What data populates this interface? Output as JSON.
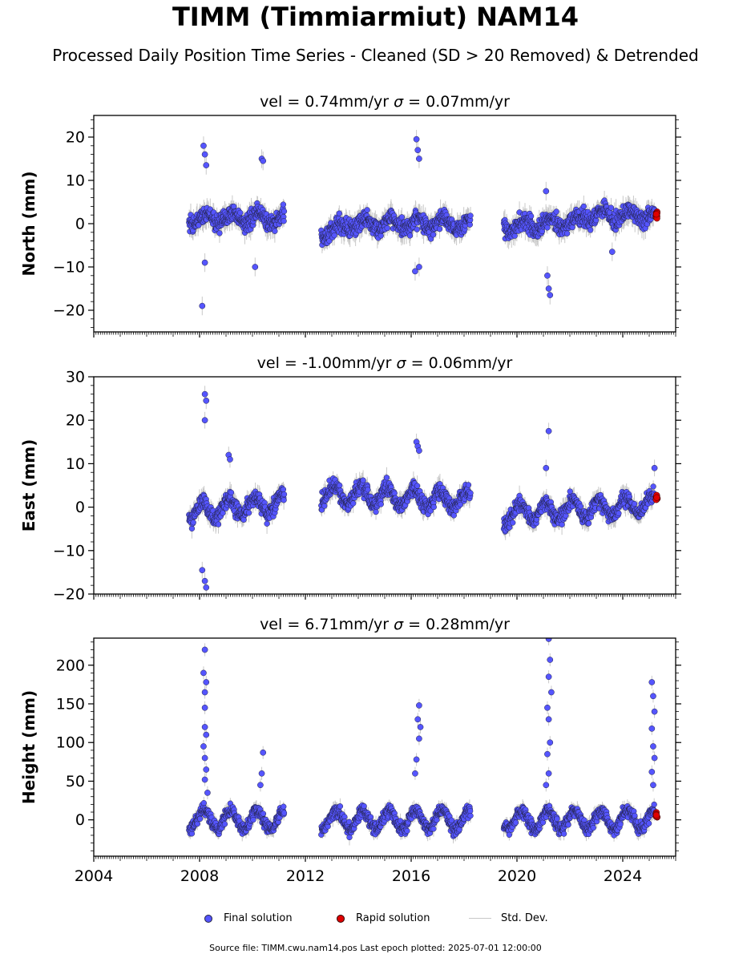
{
  "title": "TIMM (Timmiarmiut) NAM14",
  "subtitle": "Processed Daily Position Time Series - Cleaned (SD > 20 Removed) & Detrended",
  "source_note": "Source file: TIMM.cwu.nam14.pos  Last epoch plotted: 2025-07-01 12:00:00",
  "legend": {
    "final": "Final solution",
    "rapid": "Rapid solution",
    "std": "Std. Dev."
  },
  "colors": {
    "final": "#5555ff",
    "final_edge": "#222244",
    "rapid": "#e00000",
    "std": "#c8c8c8"
  },
  "chart_data": [
    {
      "type": "scatter",
      "panel_title": "vel = 0.74mm/yr   σ = 0.07mm/yr",
      "vel_label": "vel = 0.74mm/yr",
      "sigma_label": "= 0.07mm/yr",
      "ylabel": "North (mm)",
      "ylim": [
        -25,
        25
      ],
      "yticks": [
        -20,
        -10,
        0,
        10,
        20
      ],
      "xlim": [
        2004,
        2026
      ],
      "outliers": [
        [
          2008.15,
          18
        ],
        [
          2008.2,
          16
        ],
        [
          2008.25,
          13.5
        ],
        [
          2008.1,
          -19
        ],
        [
          2008.2,
          -9
        ],
        [
          2010.35,
          15
        ],
        [
          2010.4,
          14.5
        ],
        [
          2010.1,
          -10
        ],
        [
          2016.2,
          19.5
        ],
        [
          2016.25,
          17
        ],
        [
          2016.3,
          15
        ],
        [
          2016.15,
          -11
        ],
        [
          2016.3,
          -10
        ],
        [
          2021.1,
          7.5
        ],
        [
          2021.2,
          -15
        ],
        [
          2021.25,
          -16.5
        ],
        [
          2021.15,
          -12
        ],
        [
          2023.6,
          -6.5
        ]
      ]
    },
    {
      "type": "scatter",
      "panel_title": "vel = -1.00mm/yr   σ = 0.06mm/yr",
      "vel_label": "vel = -1.00mm/yr",
      "sigma_label": "= 0.06mm/yr",
      "ylabel": "East (mm)",
      "ylim": [
        -20,
        30
      ],
      "yticks": [
        -20,
        -10,
        0,
        10,
        20,
        30
      ],
      "xlim": [
        2004,
        2026
      ],
      "outliers": [
        [
          2008.2,
          26
        ],
        [
          2008.25,
          24.5
        ],
        [
          2008.2,
          20
        ],
        [
          2008.1,
          -14.5
        ],
        [
          2008.2,
          -17
        ],
        [
          2008.25,
          -18.5
        ],
        [
          2009.1,
          12
        ],
        [
          2009.15,
          11
        ],
        [
          2016.2,
          15
        ],
        [
          2016.25,
          14
        ],
        [
          2016.3,
          13
        ],
        [
          2021.2,
          17.5
        ],
        [
          2021.1,
          9
        ],
        [
          2025.2,
          9
        ]
      ]
    },
    {
      "type": "scatter",
      "panel_title": "vel = 6.71mm/yr   σ = 0.28mm/yr",
      "vel_label": "vel = 6.71mm/yr",
      "sigma_label": "= 0.28mm/yr",
      "ylabel": "Height (mm)",
      "ylim": [
        -47,
        235
      ],
      "yticks": [
        0,
        50,
        100,
        150,
        200
      ],
      "xlim": [
        2004,
        2026
      ],
      "xticks": [
        2004,
        2008,
        2012,
        2016,
        2020,
        2024
      ],
      "outliers": [
        [
          2008.2,
          220
        ],
        [
          2008.15,
          190
        ],
        [
          2008.25,
          178
        ],
        [
          2008.2,
          165
        ],
        [
          2008.2,
          145
        ],
        [
          2008.2,
          120
        ],
        [
          2008.25,
          110
        ],
        [
          2008.15,
          95
        ],
        [
          2008.2,
          80
        ],
        [
          2008.25,
          65
        ],
        [
          2008.2,
          52
        ],
        [
          2008.3,
          35
        ],
        [
          2010.4,
          87
        ],
        [
          2010.35,
          60
        ],
        [
          2010.3,
          45
        ],
        [
          2016.3,
          148
        ],
        [
          2016.25,
          130
        ],
        [
          2016.35,
          120
        ],
        [
          2016.3,
          105
        ],
        [
          2016.2,
          78
        ],
        [
          2016.15,
          60
        ],
        [
          2021.2,
          234
        ],
        [
          2021.25,
          207
        ],
        [
          2021.2,
          185
        ],
        [
          2021.3,
          165
        ],
        [
          2021.15,
          145
        ],
        [
          2021.2,
          130
        ],
        [
          2021.25,
          100
        ],
        [
          2021.15,
          85
        ],
        [
          2021.2,
          60
        ],
        [
          2021.1,
          45
        ],
        [
          2025.1,
          178
        ],
        [
          2025.15,
          160
        ],
        [
          2025.2,
          140
        ],
        [
          2025.1,
          118
        ],
        [
          2025.15,
          95
        ],
        [
          2025.2,
          80
        ],
        [
          2025.1,
          62
        ],
        [
          2025.15,
          45
        ]
      ]
    }
  ]
}
